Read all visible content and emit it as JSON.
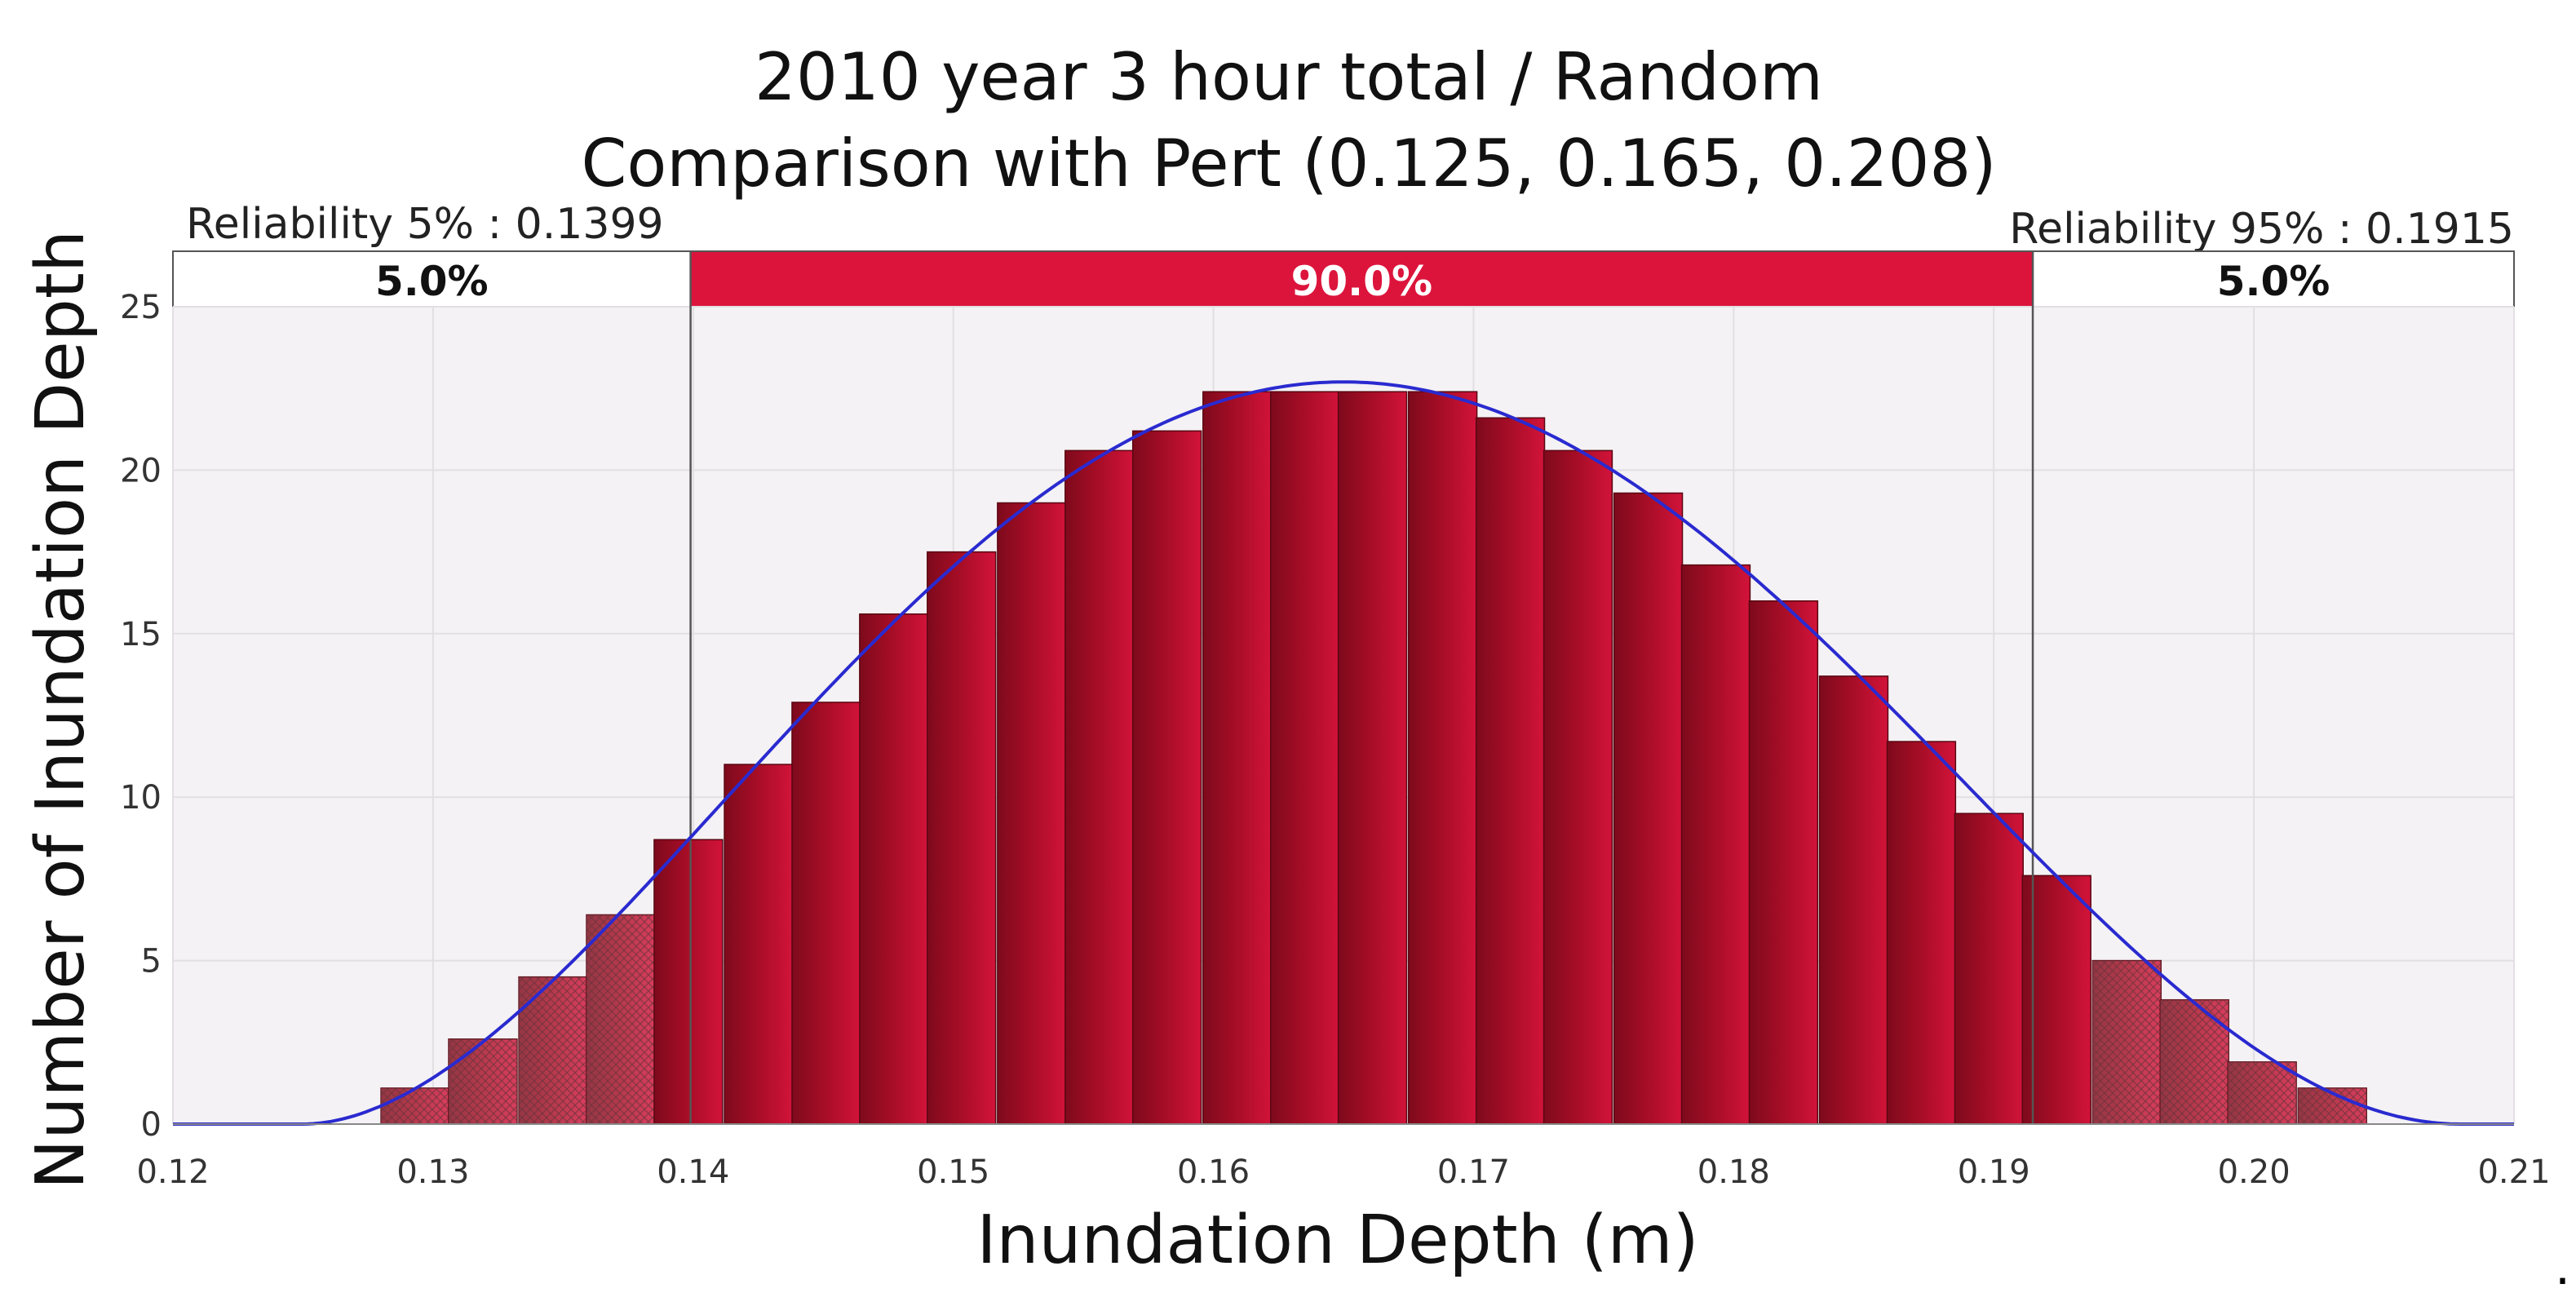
{
  "chart_data": {
    "type": "bar",
    "title": "2010 year 3 hour total / Random",
    "subtitle": "Comparison with Pert (0.125, 0.165, 0.208)",
    "xlabel": "Inundation Depth (m)",
    "ylabel": "Number of Inundation Depth",
    "xlim": [
      0.12,
      0.21
    ],
    "ylim": [
      0,
      25
    ],
    "x_ticks": [
      "0.12",
      "0.13",
      "0.14",
      "0.15",
      "0.16",
      "0.17",
      "0.18",
      "0.19",
      "0.20",
      "0.21"
    ],
    "y_ticks": [
      "0",
      "5",
      "10",
      "15",
      "20",
      "25"
    ],
    "grid": true,
    "bin_width": 0.00263,
    "bin_starts": [
      0.128,
      0.1306,
      0.1333,
      0.1359,
      0.1385,
      0.1412,
      0.1438,
      0.1464,
      0.149,
      0.1517,
      0.1543,
      0.1569,
      0.1596,
      0.1622,
      0.1648,
      0.1675,
      0.1701,
      0.1727,
      0.1754,
      0.178,
      0.1806,
      0.1833,
      0.1859,
      0.1885,
      0.1911,
      0.1938,
      0.1964,
      0.199,
      0.2017
    ],
    "values": [
      1.1,
      2.6,
      4.5,
      6.4,
      8.7,
      11.0,
      12.9,
      15.6,
      17.5,
      19.0,
      20.6,
      21.2,
      22.4,
      22.4,
      22.4,
      22.4,
      21.6,
      20.6,
      19.3,
      17.1,
      16.0,
      13.7,
      11.7,
      9.5,
      7.6,
      5.0,
      3.8,
      1.9,
      1.1
    ],
    "pert_curve": {
      "min": 0.125,
      "mode": 0.165,
      "max": 0.208,
      "peak": 22.7
    },
    "reliability": {
      "lower_label": "Reliability 5% : 0.1399",
      "upper_label": "Reliability 95% : 0.1915",
      "lower_value": 0.1399,
      "upper_value": 0.1915,
      "left_pct": "5.0%",
      "middle_pct": "90.0%",
      "right_pct": "5.0%"
    },
    "colors": {
      "bar_main": "#c8102e",
      "bar_dark": "#8a0a1f",
      "curve": "#2a2ad0",
      "band_middle": "#dc143c",
      "plot_bg": "#f4f2f4"
    }
  },
  "trailing_mark": "."
}
